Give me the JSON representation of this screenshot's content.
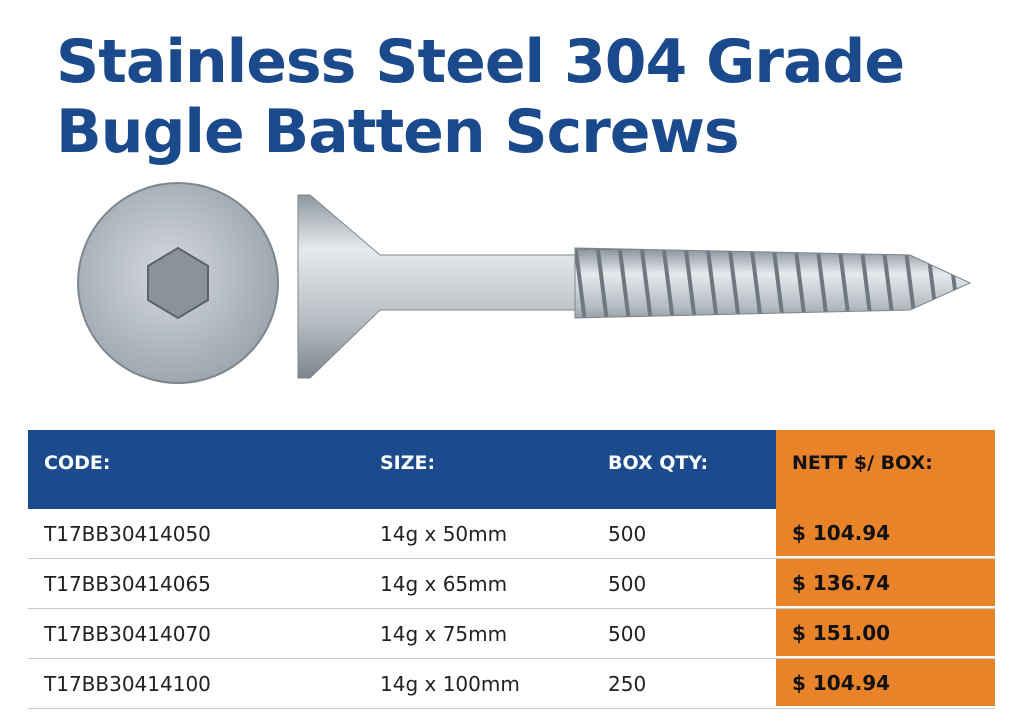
{
  "header": {
    "title_lines": [
      "Stainless Steel 304 Grade",
      "Bugle Batten Screws"
    ]
  },
  "table": {
    "columns": [
      "CODE:",
      "SIZE:",
      "BOX QTY:",
      "NETT $/ BOX:"
    ],
    "rows": [
      [
        "T17BB30414050",
        "14g x 50mm",
        "500",
        "$ 104.94"
      ],
      [
        "T17BB30414065",
        "14g x 65mm",
        "500",
        "$ 136.74"
      ],
      [
        "T17BB30414070",
        "14g x 75mm",
        "500",
        "$ 151.00"
      ],
      [
        "T17BB30414100",
        "14g x 100mm",
        "250",
        "$ 104.94"
      ]
    ]
  }
}
